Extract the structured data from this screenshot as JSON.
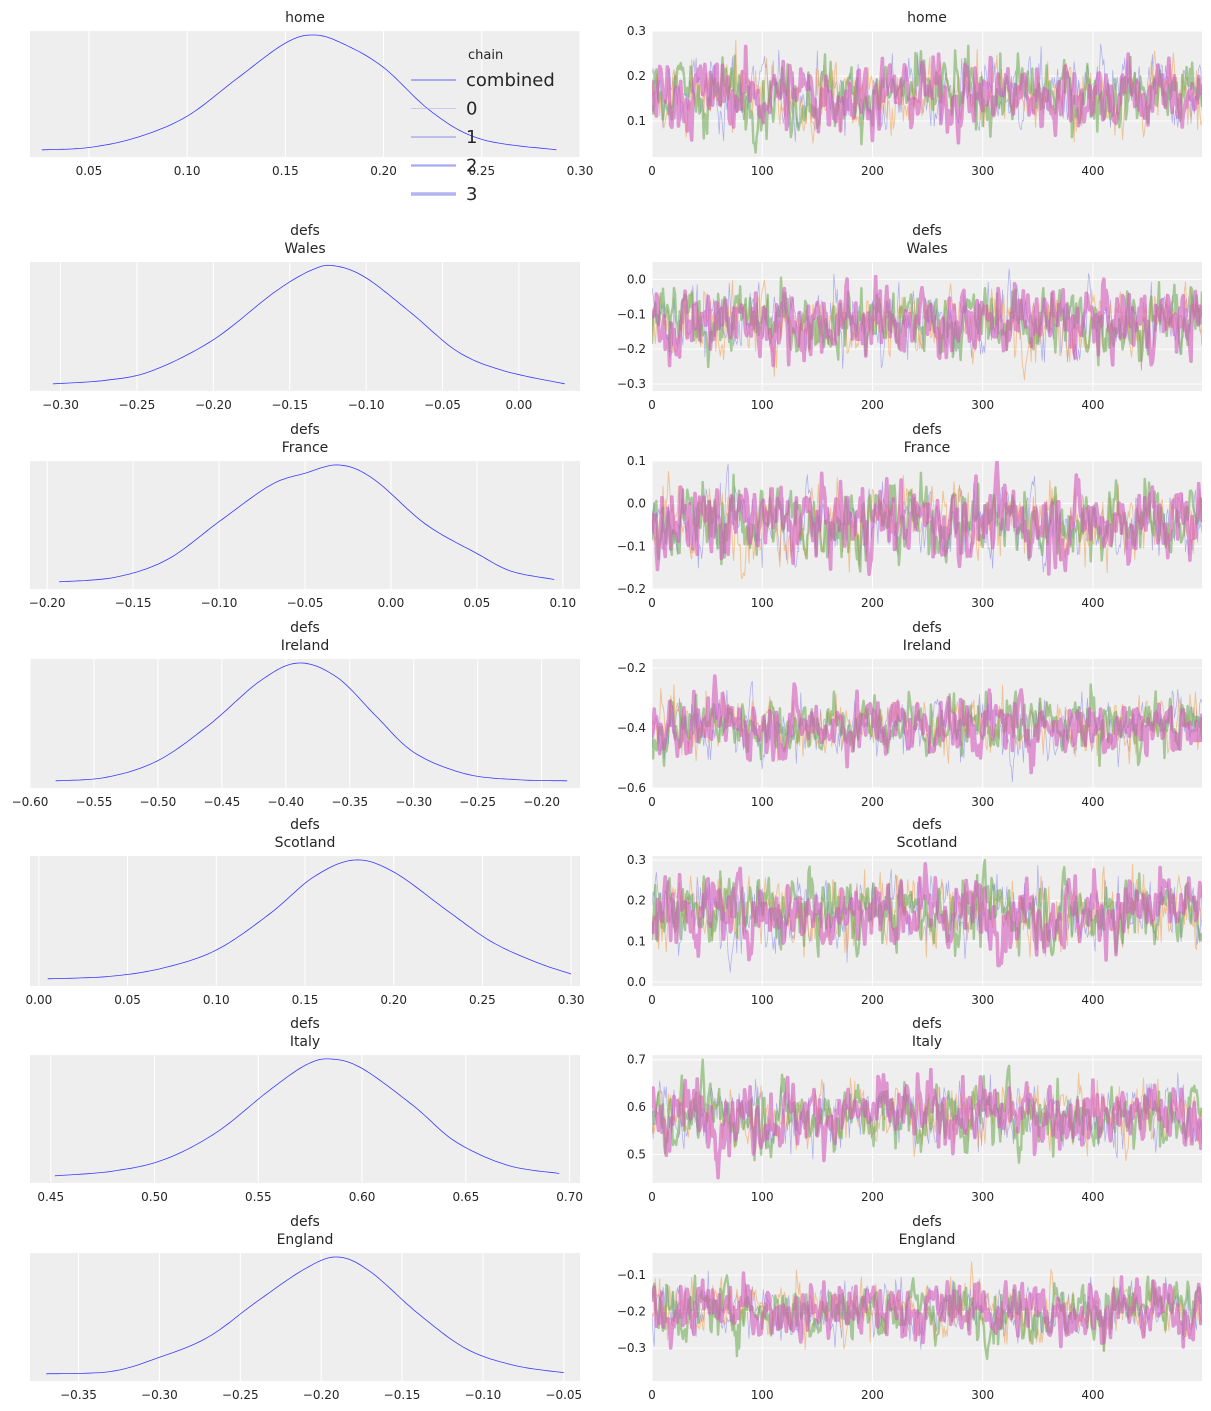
{
  "colors": {
    "panel_bg": "#eeeeee",
    "grid": "#ffffff",
    "kde_line": "#3a3aff",
    "chain_colors": [
      "#5a5ae6",
      "#f0a050",
      "#6aa84f",
      "#d45abd"
    ]
  },
  "legend": {
    "title": "chain",
    "entries": [
      "combined",
      "0",
      "1",
      "2",
      "3"
    ]
  },
  "chart_data": [
    {
      "type": "line",
      "kind": "kde",
      "title": [
        "home"
      ],
      "xlim": [
        0.02,
        0.3
      ],
      "xticks": [
        0.05,
        0.1,
        0.15,
        0.2,
        0.25,
        0.3
      ],
      "xtick_labels": [
        "0.05",
        "0.10",
        "0.15",
        "0.20",
        "0.25",
        "0.30"
      ],
      "x": [
        0.026,
        0.05,
        0.075,
        0.1,
        0.125,
        0.15,
        0.165,
        0.18,
        0.2,
        0.225,
        0.25,
        0.288
      ],
      "y": [
        0.01,
        0.03,
        0.12,
        0.3,
        0.62,
        0.93,
        1.0,
        0.92,
        0.72,
        0.33,
        0.1,
        0.01
      ]
    },
    {
      "type": "line",
      "kind": "trace",
      "title": [
        "home"
      ],
      "ylim": [
        0.02,
        0.3
      ],
      "yticks": [
        0.1,
        0.2,
        0.3
      ],
      "ytick_labels": [
        "0.1",
        "0.2",
        "0.3"
      ],
      "xlim": [
        0,
        499
      ],
      "xticks": [
        0,
        100,
        200,
        300,
        400
      ],
      "xtick_labels": [
        "0",
        "100",
        "200",
        "300",
        "400"
      ],
      "center": 0.16,
      "spread": 0.04,
      "min": 0.03,
      "max": 0.29
    },
    {
      "type": "line",
      "kind": "kde",
      "title": [
        "defs",
        "Wales"
      ],
      "xlim": [
        -0.32,
        0.04
      ],
      "xticks": [
        -0.3,
        -0.25,
        -0.2,
        -0.15,
        -0.1,
        -0.05,
        0.0
      ],
      "xtick_labels": [
        "−0.30",
        "−0.25",
        "−0.20",
        "−0.15",
        "−0.10",
        "−0.05",
        "0.00"
      ],
      "x": [
        -0.305,
        -0.27,
        -0.24,
        -0.2,
        -0.16,
        -0.135,
        -0.12,
        -0.1,
        -0.07,
        -0.04,
        -0.01,
        0.03
      ],
      "y": [
        0.01,
        0.04,
        0.12,
        0.38,
        0.78,
        0.97,
        1.0,
        0.9,
        0.6,
        0.28,
        0.12,
        0.01
      ]
    },
    {
      "type": "line",
      "kind": "trace",
      "title": [
        "defs",
        "Wales"
      ],
      "ylim": [
        -0.32,
        0.05
      ],
      "yticks": [
        -0.3,
        -0.2,
        -0.1,
        0.0
      ],
      "ytick_labels": [
        "−0.3",
        "−0.2",
        "−0.1",
        "0.0"
      ],
      "xlim": [
        0,
        499
      ],
      "xticks": [
        0,
        100,
        200,
        300,
        400
      ],
      "xtick_labels": [
        "0",
        "100",
        "200",
        "300",
        "400"
      ],
      "center": -0.12,
      "spread": 0.05,
      "min": -0.31,
      "max": 0.03
    },
    {
      "type": "line",
      "kind": "kde",
      "title": [
        "defs",
        "France"
      ],
      "xlim": [
        -0.21,
        0.11
      ],
      "xticks": [
        -0.2,
        -0.15,
        -0.1,
        -0.05,
        0.0,
        0.05,
        0.1
      ],
      "xtick_labels": [
        "−0.20",
        "−0.15",
        "−0.10",
        "−0.05",
        "0.00",
        "0.05",
        "0.10"
      ],
      "x": [
        -0.193,
        -0.16,
        -0.13,
        -0.1,
        -0.07,
        -0.05,
        -0.03,
        -0.01,
        0.02,
        0.05,
        0.07,
        0.095
      ],
      "y": [
        0.01,
        0.05,
        0.2,
        0.52,
        0.83,
        0.93,
        1.0,
        0.88,
        0.5,
        0.25,
        0.1,
        0.03
      ]
    },
    {
      "type": "line",
      "kind": "trace",
      "title": [
        "defs",
        "France"
      ],
      "ylim": [
        -0.2,
        0.1
      ],
      "yticks": [
        -0.2,
        -0.1,
        0.0,
        0.1
      ],
      "ytick_labels": [
        "−0.2",
        "−0.1",
        "0.0",
        "0.1"
      ],
      "xlim": [
        0,
        499
      ],
      "xticks": [
        0,
        100,
        200,
        300,
        400
      ],
      "xtick_labels": [
        "0",
        "100",
        "200",
        "300",
        "400"
      ],
      "center": -0.04,
      "spread": 0.045,
      "min": -0.19,
      "max": 0.1
    },
    {
      "type": "line",
      "kind": "kde",
      "title": [
        "defs",
        "Ireland"
      ],
      "xlim": [
        -0.6,
        -0.17
      ],
      "xticks": [
        -0.6,
        -0.55,
        -0.5,
        -0.45,
        -0.4,
        -0.35,
        -0.3,
        -0.25,
        -0.2
      ],
      "xtick_labels": [
        "−0.60",
        "−0.55",
        "−0.50",
        "−0.45",
        "−0.40",
        "−0.35",
        "−0.30",
        "−0.25",
        "−0.20"
      ],
      "x": [
        -0.58,
        -0.54,
        -0.5,
        -0.46,
        -0.42,
        -0.39,
        -0.36,
        -0.33,
        -0.3,
        -0.26,
        -0.22,
        -0.18
      ],
      "y": [
        0.01,
        0.04,
        0.18,
        0.48,
        0.85,
        1.0,
        0.88,
        0.56,
        0.25,
        0.07,
        0.02,
        0.01
      ]
    },
    {
      "type": "line",
      "kind": "trace",
      "title": [
        "defs",
        "Ireland"
      ],
      "ylim": [
        -0.6,
        -0.17
      ],
      "yticks": [
        -0.6,
        -0.4,
        -0.2
      ],
      "ytick_labels": [
        "−0.6",
        "−0.4",
        "−0.2"
      ],
      "xlim": [
        0,
        499
      ],
      "xticks": [
        0,
        100,
        200,
        300,
        400
      ],
      "xtick_labels": [
        "0",
        "100",
        "200",
        "300",
        "400"
      ],
      "center": -0.39,
      "spread": 0.05,
      "min": -0.58,
      "max": -0.18
    },
    {
      "type": "line",
      "kind": "kde",
      "title": [
        "defs",
        "Scotland"
      ],
      "xlim": [
        -0.005,
        0.305
      ],
      "xticks": [
        0.0,
        0.05,
        0.1,
        0.15,
        0.2,
        0.25,
        0.3
      ],
      "xtick_labels": [
        "0.00",
        "0.05",
        "0.10",
        "0.15",
        "0.20",
        "0.25",
        "0.30"
      ],
      "x": [
        0.005,
        0.04,
        0.07,
        0.1,
        0.13,
        0.155,
        0.178,
        0.2,
        0.23,
        0.255,
        0.28,
        0.3
      ],
      "y": [
        0.01,
        0.03,
        0.1,
        0.25,
        0.55,
        0.86,
        1.0,
        0.9,
        0.58,
        0.32,
        0.15,
        0.05
      ]
    },
    {
      "type": "line",
      "kind": "trace",
      "title": [
        "defs",
        "Scotland"
      ],
      "ylim": [
        -0.01,
        0.31
      ],
      "yticks": [
        0.0,
        0.1,
        0.2,
        0.3
      ],
      "ytick_labels": [
        "0.0",
        "0.1",
        "0.2",
        "0.3"
      ],
      "xlim": [
        0,
        499
      ],
      "xticks": [
        0,
        100,
        200,
        300,
        400
      ],
      "xtick_labels": [
        "0",
        "100",
        "200",
        "300",
        "400"
      ],
      "center": 0.175,
      "spread": 0.045,
      "min": 0.01,
      "max": 0.3
    },
    {
      "type": "line",
      "kind": "kde",
      "title": [
        "defs",
        "Italy"
      ],
      "xlim": [
        0.44,
        0.705
      ],
      "xticks": [
        0.45,
        0.5,
        0.55,
        0.6,
        0.65,
        0.7
      ],
      "xtick_labels": [
        "0.45",
        "0.50",
        "0.55",
        "0.60",
        "0.65",
        "0.70"
      ],
      "x": [
        0.452,
        0.48,
        0.505,
        0.53,
        0.555,
        0.573,
        0.585,
        0.6,
        0.625,
        0.645,
        0.67,
        0.695
      ],
      "y": [
        0.01,
        0.05,
        0.15,
        0.38,
        0.73,
        0.95,
        1.0,
        0.92,
        0.6,
        0.3,
        0.1,
        0.03
      ]
    },
    {
      "type": "line",
      "kind": "trace",
      "title": [
        "defs",
        "Italy"
      ],
      "ylim": [
        0.44,
        0.71
      ],
      "yticks": [
        0.5,
        0.6,
        0.7
      ],
      "ytick_labels": [
        "0.5",
        "0.6",
        "0.7"
      ],
      "xlim": [
        0,
        499
      ],
      "xticks": [
        0,
        100,
        200,
        300,
        400
      ],
      "xtick_labels": [
        "0",
        "100",
        "200",
        "300",
        "400"
      ],
      "center": 0.585,
      "spread": 0.035,
      "min": 0.45,
      "max": 0.7
    },
    {
      "type": "line",
      "kind": "kde",
      "title": [
        "defs",
        "England"
      ],
      "xlim": [
        -0.38,
        -0.04
      ],
      "xticks": [
        -0.35,
        -0.3,
        -0.25,
        -0.2,
        -0.15,
        -0.1,
        -0.05
      ],
      "xtick_labels": [
        "−0.35",
        "−0.30",
        "−0.25",
        "−0.20",
        "−0.15",
        "−0.10",
        "−0.05"
      ],
      "x": [
        -0.37,
        -0.33,
        -0.3,
        -0.27,
        -0.24,
        -0.21,
        -0.19,
        -0.17,
        -0.14,
        -0.11,
        -0.08,
        -0.05
      ],
      "y": [
        0.01,
        0.03,
        0.15,
        0.32,
        0.62,
        0.9,
        1.0,
        0.88,
        0.52,
        0.22,
        0.08,
        0.02
      ]
    },
    {
      "type": "line",
      "kind": "trace",
      "title": [
        "defs",
        "England"
      ],
      "ylim": [
        -0.39,
        -0.04
      ],
      "yticks": [
        -0.3,
        -0.2,
        -0.1
      ],
      "ytick_labels": [
        "−0.3",
        "−0.2",
        "−0.1"
      ],
      "xlim": [
        0,
        499
      ],
      "xticks": [
        0,
        100,
        200,
        300,
        400
      ],
      "xtick_labels": [
        "0",
        "100",
        "200",
        "300",
        "400"
      ],
      "center": -0.195,
      "spread": 0.04,
      "min": -0.37,
      "max": -0.04
    }
  ]
}
